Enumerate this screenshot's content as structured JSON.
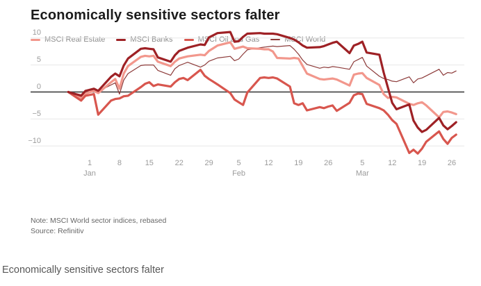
{
  "header": {
    "title": "Economically sensitive sectors falter"
  },
  "footer": {
    "note": "Note: MSCI World sector indices, rebased",
    "source": "Source: Refinitiv",
    "caption": "Economically sensitive sectors falter"
  },
  "colors": {
    "real_estate": "#f2978c",
    "banks": "#9e2125",
    "oil_gas": "#d8564e",
    "world": "#8c3a39",
    "grid": "#e7e7e7",
    "zero_line": "#4a4a4a",
    "axis_text": "#9b9b9b",
    "title_text": "#1b1b1b"
  },
  "chart_data": {
    "type": "line",
    "title": "Economically sensitive sectors falter",
    "xlabel": "",
    "ylabel": "",
    "grid": true,
    "legend_position": "top",
    "ylim": [
      -12.8,
      11.8
    ],
    "y_ticks": [
      {
        "value": 10,
        "label": "10"
      },
      {
        "value": 5,
        "label": "5"
      },
      {
        "value": 0,
        "label": "0"
      },
      {
        "value": -5,
        "label": "−5"
      },
      {
        "value": -10,
        "label": "−10"
      }
    ],
    "x_ticks": [
      {
        "d": 0,
        "label": "1"
      },
      {
        "d": 7,
        "label": "8"
      },
      {
        "d": 14,
        "label": "15"
      },
      {
        "d": 21,
        "label": "22"
      },
      {
        "d": 28,
        "label": "29"
      },
      {
        "d": 35,
        "label": "5"
      },
      {
        "d": 42,
        "label": "12"
      },
      {
        "d": 49,
        "label": "19"
      },
      {
        "d": 56,
        "label": "26"
      },
      {
        "d": 64,
        "label": "5"
      },
      {
        "d": 71,
        "label": "12"
      },
      {
        "d": 78,
        "label": "19"
      },
      {
        "d": 85,
        "label": "26"
      }
    ],
    "month_labels": [
      {
        "d": 0,
        "label": "Jan"
      },
      {
        "d": 35,
        "label": "Feb"
      },
      {
        "d": 64,
        "label": "Mar"
      }
    ],
    "x_unit": "calendar days from Jan 1, 2020 (business-day series)",
    "dates": [
      "Dec 27",
      "Dec 30",
      "Dec 31",
      "Jan 2",
      "Jan 3",
      "Jan 6",
      "Jan 7",
      "Jan 8",
      "Jan 9",
      "Jan 10",
      "Jan 13",
      "Jan 14",
      "Jan 15",
      "Jan 16",
      "Jan 17",
      "Jan 20",
      "Jan 21",
      "Jan 22",
      "Jan 23",
      "Jan 24",
      "Jan 27",
      "Jan 28",
      "Jan 29",
      "Jan 30",
      "Jan 31",
      "Feb 3",
      "Feb 4",
      "Feb 5",
      "Feb 6",
      "Feb 7",
      "Feb 10",
      "Feb 11",
      "Feb 12",
      "Feb 13",
      "Feb 14",
      "Feb 17",
      "Feb 18",
      "Feb 19",
      "Feb 20",
      "Feb 21",
      "Feb 24",
      "Feb 25",
      "Feb 26",
      "Feb 27",
      "Feb 28",
      "Mar 2",
      "Mar 3",
      "Mar 4",
      "Mar 5",
      "Mar 6",
      "Mar 9",
      "Mar 10",
      "Mar 11",
      "Mar 12",
      "Mar 13",
      "Mar 16",
      "Mar 17",
      "Mar 18",
      "Mar 19",
      "Mar 20",
      "Mar 23",
      "Mar 24",
      "Mar 25",
      "Mar 26",
      "Mar 27"
    ],
    "x_offsets": [
      -5,
      -2,
      -1,
      1,
      2,
      5,
      6,
      7,
      8,
      9,
      12,
      13,
      14,
      15,
      16,
      19,
      20,
      21,
      22,
      23,
      26,
      27,
      28,
      29,
      30,
      33,
      34,
      35,
      36,
      37,
      40,
      41,
      42,
      43,
      44,
      47,
      48,
      49,
      50,
      51,
      54,
      55,
      56,
      57,
      58,
      61,
      62,
      63,
      64,
      65,
      68,
      69,
      70,
      71,
      72,
      75,
      76,
      77,
      78,
      79,
      82,
      83,
      84,
      85,
      86
    ],
    "draw_order": [
      3,
      0,
      2,
      1
    ],
    "series": [
      {
        "name": "MSCI Real Estate",
        "color": "#f2978c",
        "width": 3.2,
        "values": [
          0,
          -1.1,
          -0.3,
          0.2,
          -0.2,
          1.8,
          2.4,
          0.6,
          3.4,
          4.8,
          6.5,
          6.7,
          6.6,
          6.7,
          5.6,
          4.8,
          5.6,
          6.2,
          6.4,
          6.6,
          6.9,
          6.8,
          7.6,
          8.1,
          8.6,
          9.2,
          8.0,
          8.2,
          8.4,
          8.1,
          8.0,
          7.9,
          7.9,
          7.5,
          6.3,
          6.2,
          6.3,
          6.2,
          4.8,
          3.4,
          2.4,
          2.3,
          2.4,
          2.5,
          2.3,
          1.2,
          3.2,
          3.4,
          3.5,
          2.6,
          1.3,
          -0.4,
          -1.1,
          -0.9,
          -1.0,
          -2.2,
          -2.4,
          -2.1,
          -1.9,
          -2.5,
          -4.7,
          -3.7,
          -3.6,
          -3.8,
          -4.1
        ]
      },
      {
        "name": "MSCI Banks",
        "color": "#9e2125",
        "width": 3.2,
        "values": [
          0,
          -0.7,
          0.2,
          0.6,
          0.2,
          2.8,
          3.4,
          2.9,
          4.9,
          6.2,
          8.0,
          8.1,
          8.0,
          7.9,
          6.4,
          5.6,
          6.8,
          7.6,
          7.9,
          8.2,
          8.8,
          8.7,
          10.1,
          10.5,
          10.9,
          11.1,
          9.3,
          9.4,
          10.2,
          10.8,
          10.9,
          10.8,
          10.8,
          10.8,
          10.7,
          10.0,
          9.7,
          9.2,
          8.6,
          8.2,
          8.3,
          8.5,
          8.8,
          9.1,
          9.3,
          7.2,
          8.6,
          8.9,
          9.3,
          7.3,
          6.9,
          3.6,
          0.8,
          -2.0,
          -3.2,
          -2.3,
          -5.3,
          -6.6,
          -7.4,
          -7.0,
          -4.8,
          -6.2,
          -6.9,
          -6.3,
          -5.6
        ]
      },
      {
        "name": "MSCI Oil and Gas",
        "color": "#d8564e",
        "width": 3.2,
        "values": [
          0,
          -1.6,
          -0.7,
          -0.4,
          -4.2,
          -1.6,
          -1.3,
          -1.2,
          -0.8,
          -0.7,
          0.9,
          1.5,
          1.8,
          1.1,
          1.4,
          1.0,
          1.8,
          2.4,
          2.6,
          2.2,
          4.1,
          3.0,
          2.4,
          1.9,
          1.4,
          -0.2,
          -1.4,
          -1.9,
          -2.4,
          -0.1,
          2.6,
          2.7,
          2.6,
          2.7,
          2.5,
          1.0,
          -2.1,
          -2.4,
          -2.1,
          -3.4,
          -2.8,
          -3.0,
          -2.7,
          -2.5,
          -3.5,
          -2.0,
          -0.6,
          -0.3,
          -0.4,
          -2.2,
          -3.0,
          -3.4,
          -4.2,
          -5.2,
          -5.9,
          -11.3,
          -10.7,
          -11.4,
          -10.5,
          -9.2,
          -7.3,
          -8.7,
          -9.6,
          -8.5,
          -7.9
        ]
      },
      {
        "name": "MSCI World",
        "color": "#8c3a39",
        "width": 1.2,
        "values": [
          0,
          -0.5,
          0.1,
          0.5,
          0.1,
          1.3,
          1.7,
          -0.4,
          2.2,
          3.4,
          4.9,
          5.0,
          5.0,
          5.0,
          4.0,
          3.1,
          4.3,
          4.9,
          5.2,
          5.5,
          4.6,
          5.0,
          5.7,
          6.0,
          6.3,
          6.6,
          5.8,
          6.1,
          7.0,
          7.8,
          8.2,
          8.3,
          8.4,
          8.5,
          8.4,
          8.6,
          7.9,
          7.0,
          5.9,
          5.1,
          4.4,
          4.6,
          4.5,
          4.7,
          4.6,
          4.2,
          5.6,
          6.0,
          6.4,
          4.8,
          2.9,
          2.5,
          2.3,
          2.0,
          1.9,
          2.8,
          1.7,
          2.4,
          2.6,
          3.0,
          4.2,
          3.1,
          3.6,
          3.5,
          3.9
        ]
      }
    ]
  }
}
